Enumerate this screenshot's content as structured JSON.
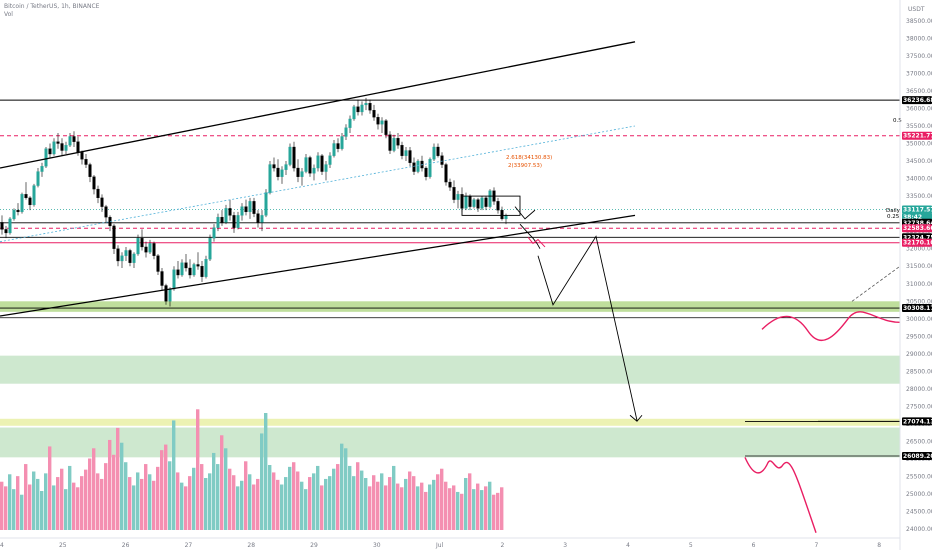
{
  "header": {
    "symbol": "Bitcoin / TetherUS, 1h, BINANCE",
    "indicator": "Vol"
  },
  "chart_data": {
    "type": "candlestick",
    "x_ticks": [
      {
        "label": "24",
        "x": 0
      },
      {
        "label": "25",
        "x": 1
      },
      {
        "label": "26",
        "x": 2
      },
      {
        "label": "27",
        "x": 3
      },
      {
        "label": "28",
        "x": 4
      },
      {
        "label": "29",
        "x": 5
      },
      {
        "label": "30",
        "x": 6
      },
      {
        "label": "Jul",
        "x": 7
      },
      {
        "label": "2",
        "x": 8
      },
      {
        "label": "3",
        "x": 9
      },
      {
        "label": "4",
        "x": 10
      },
      {
        "label": "5",
        "x": 11
      },
      {
        "label": "6",
        "x": 12
      },
      {
        "label": "7",
        "x": 13
      },
      {
        "label": "8",
        "x": 14
      }
    ],
    "y_top_label": "USDT",
    "y_ticks": [
      24000,
      24500,
      25000,
      25500,
      26000,
      26500,
      27000,
      27500,
      28000,
      28500,
      29000,
      29500,
      30000,
      30500,
      31000,
      31500,
      32000,
      32500,
      33000,
      33500,
      34000,
      34500,
      35000,
      35500,
      36000,
      36500,
      37000,
      37500,
      38000,
      38500
    ],
    "ylim": [
      23750,
      38750
    ],
    "price_tags": [
      {
        "label": "36236.68",
        "value": 36236.68,
        "color": "#000000"
      },
      {
        "label": "35221.77",
        "value": 35221.77,
        "color": "#e91e63"
      },
      {
        "label": "33117.57",
        "value": 33117.57,
        "color": "#26a69a",
        "sub": "38:42"
      },
      {
        "label": "32738.64",
        "value": 32738.64,
        "color": "#000000"
      },
      {
        "label": "32583.66",
        "value": 32583.66,
        "color": "#e91e63"
      },
      {
        "label": "32324.75",
        "value": 32324.75,
        "color": "#000000"
      },
      {
        "label": "32170.10",
        "value": 32170.1,
        "color": "#e91e63"
      },
      {
        "label": "30308.17",
        "value": 30308.17,
        "color": "#000000"
      },
      {
        "label": "27074.13",
        "value": 27074.13,
        "color": "#000000"
      },
      {
        "label": "26089.20",
        "value": 26089.2,
        "color": "#000000"
      }
    ],
    "fib_labels": [
      {
        "label": "0.5",
        "value": 35221.77
      },
      {
        "label": "Daily",
        "value": 32770
      },
      {
        "label": "0.25",
        "value": 32600
      }
    ],
    "annotations": [
      {
        "label": "2.618(34130.83)",
        "value": 34130.83
      },
      {
        "label": "2(33907.53)",
        "value": 33907.53
      }
    ],
    "zones": [
      {
        "from": 30200,
        "to": 30500,
        "color": "#8bc34a"
      },
      {
        "from": 28150,
        "to": 28950,
        "color": "#a5d6a7"
      },
      {
        "from": 26950,
        "to": 27150,
        "color": "#dce775"
      },
      {
        "from": 26050,
        "to": 26900,
        "color": "#a5d6a7"
      }
    ],
    "candles": [
      [
        32750,
        32950,
        32400,
        32550
      ],
      [
        32550,
        32650,
        32300,
        32450
      ],
      [
        32450,
        32900,
        32400,
        32850
      ],
      [
        32850,
        33150,
        32800,
        33100
      ],
      [
        33100,
        33300,
        32950,
        33050
      ],
      [
        33050,
        33600,
        33000,
        33550
      ],
      [
        33550,
        33900,
        33400,
        33450
      ],
      [
        33450,
        33500,
        33100,
        33250
      ],
      [
        33250,
        33850,
        33200,
        33800
      ],
      [
        33800,
        34300,
        33750,
        34200
      ],
      [
        34200,
        34450,
        34050,
        34350
      ],
      [
        34350,
        34900,
        34300,
        34850
      ],
      [
        34850,
        35000,
        34600,
        34700
      ],
      [
        34700,
        35150,
        34650,
        35050
      ],
      [
        35050,
        35300,
        34850,
        35000
      ],
      [
        35000,
        35150,
        34650,
        34800
      ],
      [
        34800,
        35050,
        34700,
        34950
      ],
      [
        34950,
        35300,
        34900,
        35200
      ],
      [
        35200,
        35350,
        34900,
        35050
      ],
      [
        35050,
        35200,
        34650,
        34750
      ],
      [
        34750,
        34800,
        34400,
        34550
      ],
      [
        34550,
        34700,
        34300,
        34400
      ],
      [
        34400,
        34450,
        33900,
        34050
      ],
      [
        34050,
        34100,
        33550,
        33700
      ],
      [
        33700,
        33800,
        33300,
        33450
      ],
      [
        33450,
        33550,
        33050,
        33200
      ],
      [
        33200,
        33250,
        32750,
        32900
      ],
      [
        32900,
        32950,
        32500,
        32650
      ],
      [
        32650,
        32700,
        31850,
        32000
      ],
      [
        32000,
        32100,
        31500,
        31650
      ],
      [
        31650,
        31900,
        31450,
        31800
      ],
      [
        31800,
        32050,
        31650,
        31950
      ],
      [
        31950,
        32000,
        31500,
        31600
      ],
      [
        31600,
        31900,
        31450,
        31850
      ],
      [
        31850,
        32400,
        31800,
        32300
      ],
      [
        32300,
        32550,
        31950,
        32050
      ],
      [
        32050,
        32200,
        31750,
        31900
      ],
      [
        31900,
        32250,
        31850,
        32150
      ],
      [
        32150,
        32200,
        31700,
        31800
      ],
      [
        31800,
        31850,
        31250,
        31350
      ],
      [
        31350,
        31450,
        30800,
        30950
      ],
      [
        30950,
        31000,
        30400,
        30500
      ],
      [
        30500,
        30900,
        30350,
        30850
      ],
      [
        30850,
        31500,
        30800,
        31400
      ],
      [
        31400,
        31650,
        31150,
        31250
      ],
      [
        31250,
        31700,
        31200,
        31600
      ],
      [
        31600,
        31850,
        31350,
        31450
      ],
      [
        31450,
        31700,
        31150,
        31250
      ],
      [
        31250,
        31600,
        31200,
        31550
      ],
      [
        31550,
        31900,
        31400,
        31500
      ],
      [
        31500,
        31650,
        31050,
        31200
      ],
      [
        31200,
        31800,
        31150,
        31700
      ],
      [
        31700,
        32400,
        31650,
        32300
      ],
      [
        32300,
        32700,
        32200,
        32600
      ],
      [
        32600,
        33000,
        32500,
        32900
      ],
      [
        32900,
        33100,
        32650,
        32750
      ],
      [
        32750,
        33250,
        32700,
        33150
      ],
      [
        33150,
        33400,
        32800,
        32950
      ],
      [
        32950,
        33050,
        32450,
        32600
      ],
      [
        32600,
        33050,
        32550,
        32950
      ],
      [
        32950,
        33300,
        32800,
        33200
      ],
      [
        33200,
        33400,
        32950,
        33050
      ],
      [
        33050,
        33450,
        32850,
        33350
      ],
      [
        33350,
        33450,
        32900,
        33000
      ],
      [
        33000,
        33100,
        32600,
        32750
      ],
      [
        32750,
        33100,
        32500,
        32950
      ],
      [
        32950,
        33700,
        32900,
        33600
      ],
      [
        33600,
        34500,
        33550,
        34400
      ],
      [
        34400,
        34600,
        34200,
        34300
      ],
      [
        34300,
        34550,
        33950,
        34050
      ],
      [
        34050,
        34350,
        33850,
        34250
      ],
      [
        34250,
        34500,
        34100,
        34400
      ],
      [
        34400,
        35000,
        34350,
        34900
      ],
      [
        34900,
        35050,
        34200,
        34300
      ],
      [
        34300,
        34550,
        33900,
        34050
      ],
      [
        34050,
        34300,
        33800,
        34200
      ],
      [
        34200,
        34700,
        34150,
        34600
      ],
      [
        34600,
        34650,
        34050,
        34150
      ],
      [
        34150,
        34400,
        33950,
        34300
      ],
      [
        34300,
        34750,
        34200,
        34650
      ],
      [
        34650,
        34700,
        34100,
        34200
      ],
      [
        34200,
        34500,
        33950,
        34400
      ],
      [
        34400,
        34750,
        34300,
        34650
      ],
      [
        34650,
        35100,
        34600,
        35000
      ],
      [
        35000,
        35150,
        34750,
        34850
      ],
      [
        34850,
        35300,
        34800,
        35200
      ],
      [
        35200,
        35550,
        35100,
        35450
      ],
      [
        35450,
        35800,
        35300,
        35700
      ],
      [
        35700,
        36100,
        35650,
        36050
      ],
      [
        36050,
        36250,
        35800,
        35900
      ],
      [
        35900,
        36200,
        35800,
        36100
      ],
      [
        36100,
        36300,
        35950,
        36150
      ],
      [
        36150,
        36250,
        35850,
        35950
      ],
      [
        35950,
        36100,
        35650,
        35750
      ],
      [
        35750,
        35850,
        35400,
        35550
      ],
      [
        35550,
        35750,
        35300,
        35650
      ],
      [
        35650,
        35700,
        35150,
        35250
      ],
      [
        35250,
        35350,
        34700,
        34800
      ],
      [
        34800,
        35250,
        34750,
        35150
      ],
      [
        35150,
        35300,
        34850,
        34950
      ],
      [
        34950,
        35050,
        34550,
        34650
      ],
      [
        34650,
        34900,
        34500,
        34800
      ],
      [
        34800,
        34900,
        34350,
        34450
      ],
      [
        34450,
        34600,
        34100,
        34200
      ],
      [
        34200,
        34550,
        34150,
        34500
      ],
      [
        34500,
        34650,
        34200,
        34300
      ],
      [
        34300,
        34350,
        33950,
        34050
      ],
      [
        34050,
        34600,
        34000,
        34550
      ],
      [
        34550,
        35000,
        34500,
        34900
      ],
      [
        34900,
        35000,
        34600,
        34650
      ],
      [
        34650,
        34750,
        34300,
        34400
      ],
      [
        34400,
        34450,
        33800,
        33900
      ],
      [
        33900,
        34000,
        33650,
        33750
      ],
      [
        33750,
        33950,
        33300,
        33400
      ],
      [
        33400,
        33650,
        33150,
        33550
      ],
      [
        33550,
        33750,
        33050,
        33150
      ],
      [
        33150,
        33600,
        33100,
        33500
      ],
      [
        33500,
        33550,
        33100,
        33200
      ],
      [
        33200,
        33450,
        33150,
        33400
      ],
      [
        33400,
        33450,
        33050,
        33150
      ],
      [
        33150,
        33500,
        33100,
        33450
      ],
      [
        33450,
        33500,
        33100,
        33200
      ],
      [
        33200,
        33700,
        33150,
        33650
      ],
      [
        33650,
        33750,
        33250,
        33350
      ],
      [
        33350,
        33450,
        33000,
        33100
      ],
      [
        33100,
        33200,
        32800,
        32850
      ],
      [
        32850,
        33000,
        32700,
        32950
      ]
    ],
    "volume": [
      52,
      47,
      60,
      44,
      58,
      38,
      71,
      49,
      63,
      55,
      42,
      61,
      90,
      48,
      57,
      66,
      44,
      69,
      51,
      46,
      58,
      65,
      77,
      88,
      61,
      55,
      72,
      97,
      81,
      110,
      94,
      73,
      57,
      48,
      62,
      55,
      71,
      60,
      53,
      68,
      86,
      92,
      74,
      118,
      62,
      51,
      47,
      58,
      67,
      130,
      71,
      56,
      61,
      83,
      71,
      102,
      88,
      66,
      59,
      47,
      53,
      74,
      60,
      49,
      55,
      104,
      126,
      70,
      62,
      54,
      49,
      57,
      68,
      73,
      63,
      52,
      44,
      57,
      61,
      69,
      48,
      55,
      58,
      66,
      71,
      93,
      88,
      69,
      58,
      73,
      64,
      56,
      47,
      59,
      52,
      61,
      48,
      57,
      69,
      50,
      46,
      55,
      63,
      58,
      47,
      51,
      41,
      49,
      54,
      60,
      66,
      52,
      45,
      48,
      41,
      39,
      56,
      61,
      44,
      50,
      43,
      47,
      52,
      38,
      40,
      46
    ],
    "vol_ylim": [
      0,
      140
    ]
  },
  "colors": {
    "up": "#26a69a",
    "down": "#ef5350",
    "vol_up": "#80cbc4",
    "vol_down": "#f48fb1",
    "pink": "#e91e63",
    "channel": "#000000",
    "dotted": "#26a69a"
  }
}
